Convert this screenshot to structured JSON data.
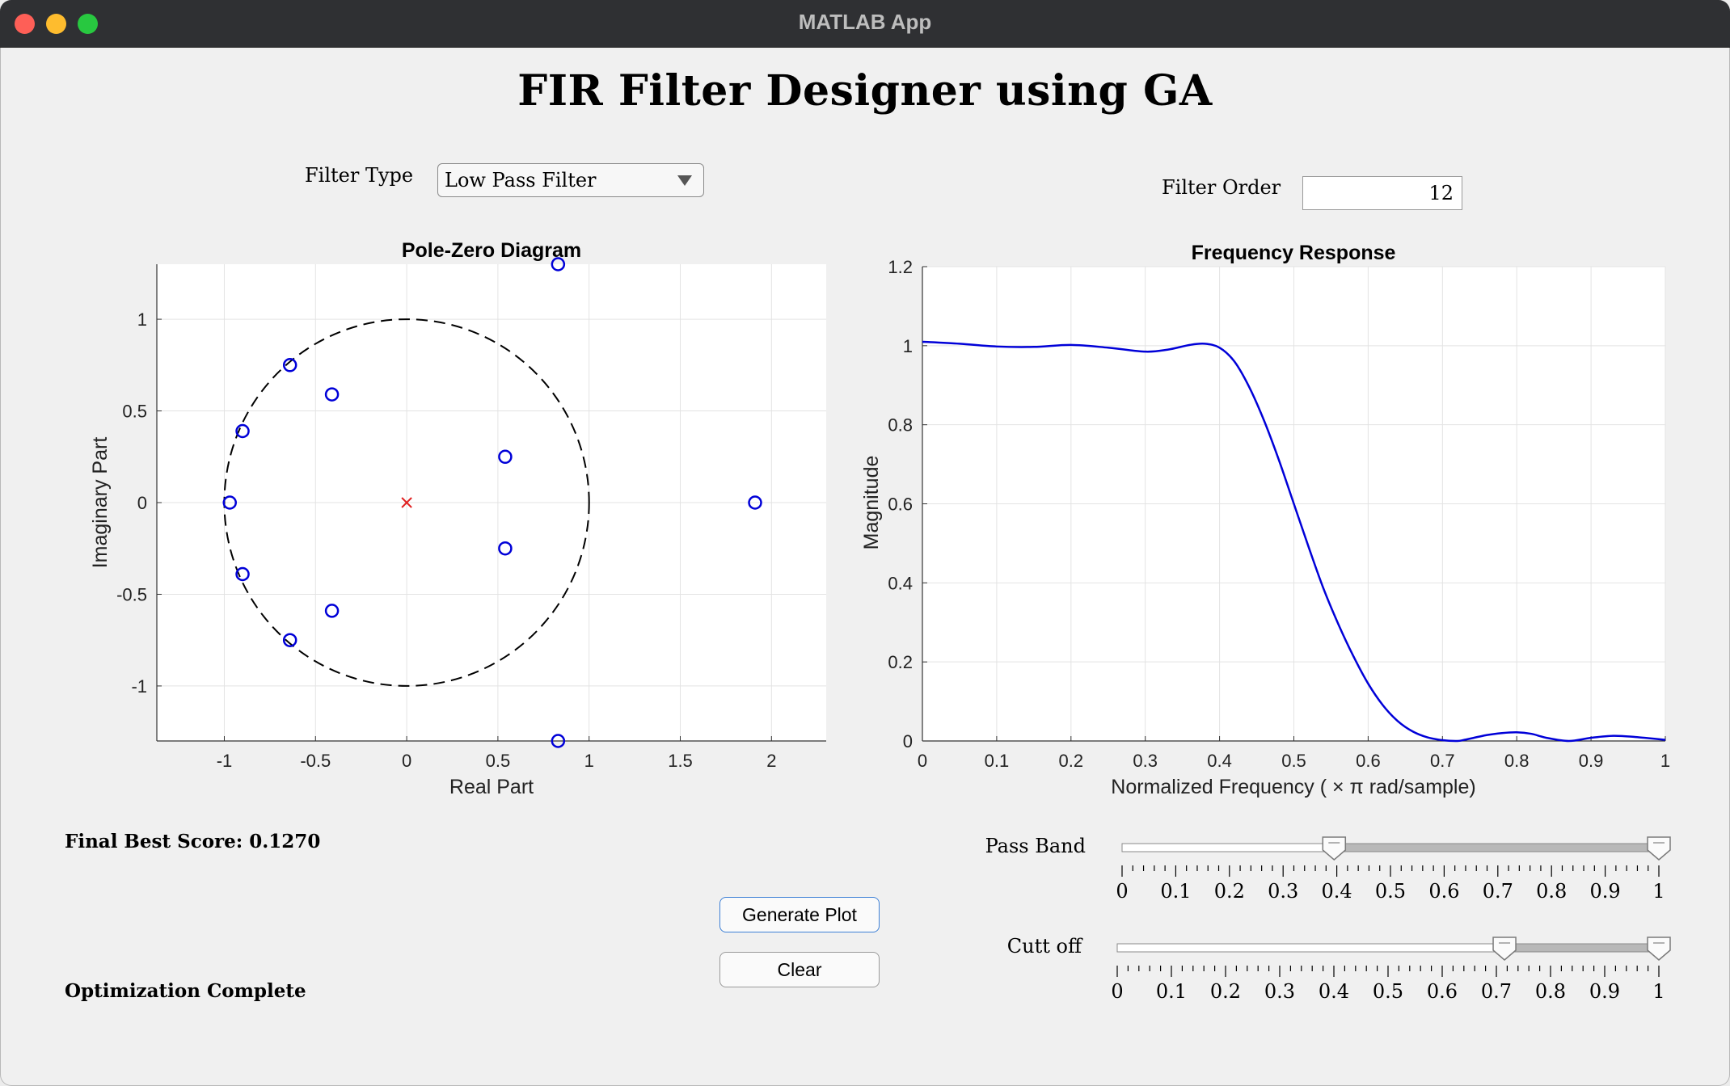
{
  "window": {
    "title": "MATLAB App"
  },
  "app": {
    "title": "FIR Filter Designer using GA"
  },
  "controls": {
    "filter_type_label": "Filter Type",
    "filter_type_value": "Low Pass Filter",
    "filter_order_label": "Filter Order",
    "filter_order_value": "12",
    "generate_button": "Generate Plot",
    "clear_button": "Clear"
  },
  "status": {
    "score_text": "Final Best Score: 0.1270",
    "status_text": "Optimization Complete"
  },
  "sliders": [
    {
      "label": "Pass Band",
      "range": [
        0,
        1
      ],
      "low": 0.395,
      "high": 1.0,
      "ticks": [
        "0",
        "0.1",
        "0.2",
        "0.3",
        "0.4",
        "0.5",
        "0.6",
        "0.7",
        "0.8",
        "0.9",
        "1"
      ]
    },
    {
      "label": "Cutt off",
      "range": [
        0,
        1
      ],
      "low": 0.715,
      "high": 1.0,
      "ticks": [
        "0",
        "0.1",
        "0.2",
        "0.3",
        "0.4",
        "0.5",
        "0.6",
        "0.7",
        "0.8",
        "0.9",
        "1"
      ]
    }
  ],
  "chart_data": [
    {
      "type": "scatter",
      "title": "Pole-Zero Diagram",
      "xlabel": "Real Part",
      "ylabel": "Imaginary Part",
      "xlim": [
        -1.37,
        2.3
      ],
      "ylim": [
        -1.3,
        1.3
      ],
      "xticks": [
        -1,
        -0.5,
        0,
        0.5,
        1,
        1.5,
        2
      ],
      "xticklabels": [
        "-1",
        "-0.5",
        "0",
        "0.5",
        "1",
        "1.5",
        "2"
      ],
      "yticks": [
        -1,
        -0.5,
        0,
        0.5,
        1
      ],
      "yticklabels": [
        "-1",
        "-0.5",
        "0",
        "0.5",
        "1"
      ],
      "grid": true,
      "unit_circle": true,
      "zeros": [
        {
          "x": 0.83,
          "y": 1.3
        },
        {
          "x": 0.83,
          "y": -1.3
        },
        {
          "x": -0.64,
          "y": 0.75
        },
        {
          "x": -0.64,
          "y": -0.75
        },
        {
          "x": -0.41,
          "y": 0.59
        },
        {
          "x": -0.41,
          "y": -0.59
        },
        {
          "x": -0.9,
          "y": 0.39
        },
        {
          "x": -0.9,
          "y": -0.39
        },
        {
          "x": -0.97,
          "y": 0.0
        },
        {
          "x": 0.54,
          "y": 0.25
        },
        {
          "x": 0.54,
          "y": -0.25
        },
        {
          "x": 1.91,
          "y": 0.0
        }
      ],
      "poles": [
        {
          "x": 0.0,
          "y": 0.0
        }
      ]
    },
    {
      "type": "line",
      "title": "Frequency Response",
      "xlabel": "Normalized  Frequency  ( × π  rad/sample)",
      "ylabel": "Magnitude",
      "xlim": [
        0,
        1
      ],
      "ylim": [
        0,
        1.2
      ],
      "xticks": [
        0,
        0.1,
        0.2,
        0.3,
        0.4,
        0.5,
        0.6,
        0.7,
        0.8,
        0.9,
        1
      ],
      "xticklabels": [
        "0",
        "0.1",
        "0.2",
        "0.3",
        "0.4",
        "0.5",
        "0.6",
        "0.7",
        "0.8",
        "0.9",
        "1"
      ],
      "yticks": [
        0,
        0.2,
        0.4,
        0.6,
        0.8,
        1,
        1.2
      ],
      "yticklabels": [
        "0",
        "0.2",
        "0.4",
        "0.6",
        "0.8",
        "1",
        "1.2"
      ],
      "grid": true,
      "series": [
        {
          "color": "#0000d8",
          "x": [
            0,
            0.05,
            0.1,
            0.15,
            0.2,
            0.25,
            0.3,
            0.33,
            0.36,
            0.38,
            0.4,
            0.42,
            0.44,
            0.46,
            0.48,
            0.5,
            0.52,
            0.54,
            0.56,
            0.58,
            0.6,
            0.62,
            0.64,
            0.66,
            0.68,
            0.7,
            0.72,
            0.73,
            0.76,
            0.78,
            0.8,
            0.82,
            0.84,
            0.87,
            0.9,
            0.93,
            0.96,
            1.0
          ],
          "y": [
            1.01,
            1.005,
            0.998,
            0.997,
            1.002,
            0.995,
            0.985,
            0.99,
            1.002,
            1.005,
            0.995,
            0.96,
            0.895,
            0.81,
            0.71,
            0.6,
            0.49,
            0.385,
            0.295,
            0.215,
            0.145,
            0.09,
            0.05,
            0.024,
            0.009,
            0.002,
            0.0,
            0.003,
            0.015,
            0.02,
            0.022,
            0.018,
            0.008,
            0.0,
            0.008,
            0.013,
            0.01,
            0.003
          ]
        }
      ]
    }
  ]
}
